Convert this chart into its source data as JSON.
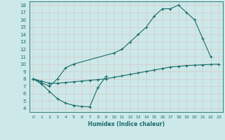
{
  "xlabel": "Humidex (Indice chaleur)",
  "ylabel": "",
  "xlim": [
    -0.5,
    23.5
  ],
  "ylim": [
    3.5,
    18.5
  ],
  "xticks": [
    0,
    1,
    2,
    3,
    4,
    5,
    6,
    7,
    8,
    9,
    10,
    11,
    12,
    13,
    14,
    15,
    16,
    17,
    18,
    19,
    20,
    21,
    22,
    23
  ],
  "yticks": [
    4,
    5,
    6,
    7,
    8,
    9,
    10,
    11,
    12,
    13,
    14,
    15,
    16,
    17,
    18
  ],
  "bg_color": "#cce8e8",
  "line_color": "#1a6b6b",
  "grid_color": "#b0d4d4",
  "line1_x": [
    0,
    1,
    2,
    3,
    4,
    5,
    10,
    11,
    12,
    13,
    14,
    15,
    16,
    17,
    18,
    19,
    20,
    21,
    22
  ],
  "line1_y": [
    8.0,
    7.5,
    7.0,
    8.0,
    9.5,
    10.0,
    11.5,
    12.0,
    13.0,
    14.0,
    15.0,
    16.5,
    17.5,
    17.5,
    18.0,
    17.0,
    16.0,
    13.5,
    11.0
  ],
  "line2_x": [
    0,
    1,
    2,
    3,
    4,
    5,
    6,
    7,
    8,
    9,
    10,
    11,
    12,
    13,
    14,
    15,
    16,
    17,
    18,
    19,
    20,
    21,
    22,
    23
  ],
  "line2_y": [
    8.0,
    7.7,
    7.4,
    7.4,
    7.5,
    7.6,
    7.7,
    7.8,
    7.9,
    8.0,
    8.2,
    8.4,
    8.6,
    8.8,
    9.0,
    9.2,
    9.4,
    9.6,
    9.7,
    9.8,
    9.85,
    9.9,
    9.95,
    10.0
  ],
  "line3_x": [
    0,
    1,
    2,
    3,
    4,
    5,
    6,
    7,
    8,
    9
  ],
  "line3_y": [
    8.0,
    7.3,
    6.3,
    5.3,
    4.7,
    4.4,
    4.25,
    4.2,
    6.8,
    8.3
  ]
}
